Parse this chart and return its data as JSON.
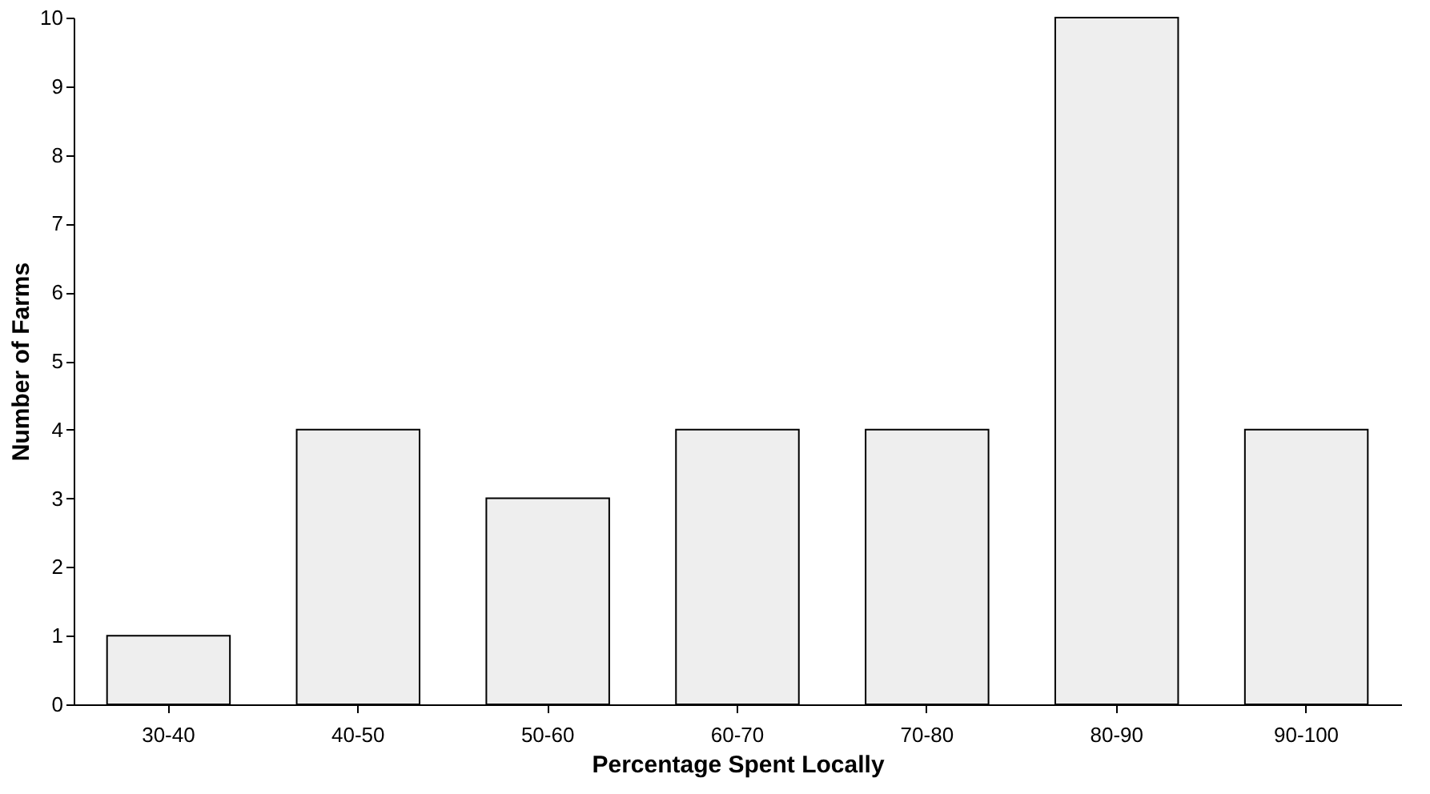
{
  "chart_data": {
    "type": "bar",
    "xlabel": "Percentage Spent Locally",
    "ylabel": "Number of Farms",
    "categories": [
      "30-40",
      "40-50",
      "50-60",
      "60-70",
      "70-80",
      "80-90",
      "90-100"
    ],
    "values": [
      1,
      4,
      3,
      4,
      4,
      10,
      4
    ],
    "color": "#eeeeee",
    "ylim": [
      0,
      10
    ],
    "yticks": [
      0,
      1,
      2,
      3,
      4,
      5,
      6,
      7,
      8,
      9,
      10
    ],
    "grid": false
  }
}
